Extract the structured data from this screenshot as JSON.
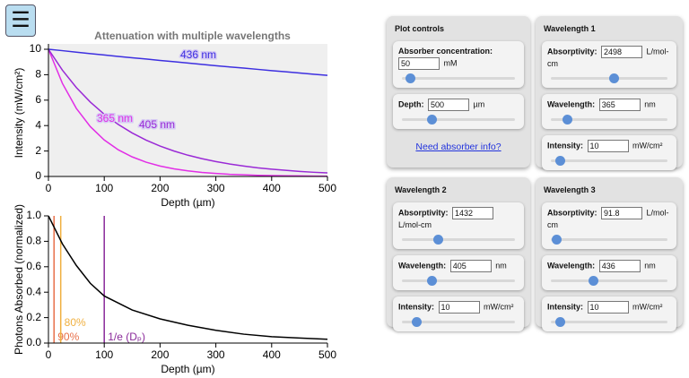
{
  "menu_icon": "☰",
  "chart_data": [
    {
      "type": "line",
      "title": "Attenuation with multiple wavelengths",
      "x_label": "Depth (µm)",
      "y_label": "Intensity (mW/cm²)",
      "background": "#efefef",
      "x": [
        0,
        25,
        50,
        75,
        100,
        125,
        150,
        175,
        200,
        225,
        250,
        275,
        300,
        325,
        350,
        375,
        400,
        425,
        450,
        475,
        500
      ],
      "series": [
        {
          "name": "365 nm",
          "color": "#e22ee6",
          "values": [
            10,
            7.32,
            5.35,
            3.92,
            2.87,
            2.1,
            1.54,
            1.12,
            0.82,
            0.6,
            0.44,
            0.32,
            0.24,
            0.17,
            0.13,
            0.09,
            0.07,
            0.05,
            0.04,
            0.03,
            0.02
          ]
        },
        {
          "name": "405 nm",
          "color": "#9a2ad6",
          "values": [
            10,
            8.36,
            6.99,
            5.85,
            4.89,
            4.09,
            3.42,
            2.86,
            2.39,
            2.0,
            1.67,
            1.4,
            1.17,
            0.98,
            0.82,
            0.68,
            0.57,
            0.48,
            0.4,
            0.33,
            0.28
          ]
        },
        {
          "name": "436 nm",
          "color": "#3d2fe0",
          "values": [
            10,
            9.89,
            9.77,
            9.66,
            9.55,
            9.44,
            9.33,
            9.23,
            9.12,
            9.02,
            8.92,
            8.81,
            8.71,
            8.61,
            8.52,
            8.42,
            8.32,
            8.23,
            8.13,
            8.04,
            7.95
          ]
        }
      ],
      "xlim": [
        0,
        500
      ],
      "ylim": [
        0,
        10
      ],
      "xticks": [
        0,
        100,
        200,
        300,
        400,
        500
      ],
      "yticks": [
        0,
        2,
        4,
        6,
        8,
        10
      ]
    },
    {
      "type": "line",
      "x_label": "Depth (µm)",
      "y_label": "Photons Absorbed (normalized)",
      "x": [
        0,
        25,
        50,
        75,
        100,
        150,
        200,
        250,
        300,
        350,
        400,
        450,
        500
      ],
      "series": [
        {
          "color": "#000000",
          "values": [
            1.0,
            0.78,
            0.61,
            0.47,
            0.37,
            0.26,
            0.19,
            0.14,
            0.1,
            0.07,
            0.05,
            0.04,
            0.03
          ]
        }
      ],
      "xlim": [
        0,
        500
      ],
      "ylim": [
        0,
        1
      ],
      "xticks": [
        0,
        100,
        200,
        300,
        400,
        500
      ],
      "yticks": [
        {
          "value": 0,
          "label": "0.0"
        },
        0.2,
        0.4,
        0.6,
        0.8,
        {
          "value": 1,
          "label": "1.0"
        }
      ],
      "annotations": [
        {
          "x": 10,
          "label": "90%",
          "color": "#e8704a"
        },
        {
          "x": 22,
          "label": "80%",
          "color": "#f0b040"
        },
        {
          "x": 100,
          "label": "1/e (Dₚ)",
          "color": "#8a2a9a"
        }
      ]
    }
  ],
  "controls": {
    "panels": [
      {
        "title": "Plot controls",
        "fields": [
          {
            "label": "Absorber concentration:",
            "value": "50",
            "unit": "mM"
          },
          {
            "label": "Depth:",
            "value": "500",
            "unit": "µm"
          }
        ],
        "link": "Need absorber info?"
      },
      {
        "title": "Wavelength 1",
        "fields": [
          {
            "label": "Absorptivity:",
            "value": "2498",
            "unit": "L/mol-cm"
          },
          {
            "label": "Wavelength:",
            "value": "365",
            "unit": "nm"
          },
          {
            "label": "Intensity:",
            "value": "10",
            "unit": "mW/cm²"
          }
        ]
      },
      {
        "title": "Wavelength 2",
        "fields": [
          {
            "label": "Absorptivity:",
            "value": "1432",
            "unit": "L/mol-cm"
          },
          {
            "label": "Wavelength:",
            "value": "405",
            "unit": "nm"
          },
          {
            "label": "Intensity:",
            "value": "10",
            "unit": "mW/cm²"
          }
        ]
      },
      {
        "title": "Wavelength 3",
        "fields": [
          {
            "label": "Absorptivity:",
            "value": "91.8",
            "unit": "L/mol-cm"
          },
          {
            "label": "Wavelength:",
            "value": "436",
            "unit": "nm"
          },
          {
            "label": "Intensity:",
            "value": "10",
            "unit": "mW/cm²"
          }
        ]
      }
    ]
  }
}
